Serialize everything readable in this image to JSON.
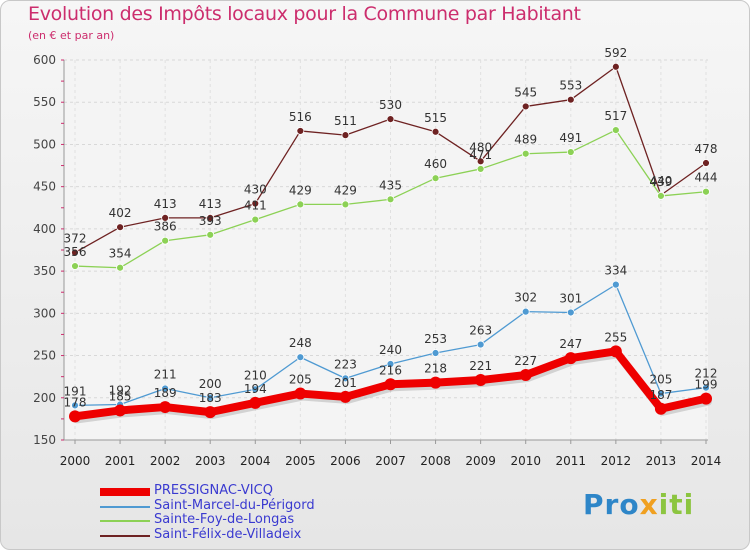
{
  "header": {
    "title": "Evolution des Impôts locaux pour la Commune par Habitant",
    "subtitle": "(en € et par an)"
  },
  "brand": {
    "part1": "Pro",
    "part2": "x",
    "part3": "iti"
  },
  "chart_data": {
    "type": "line",
    "title": "Evolution des Impôts locaux pour la Commune par Habitant",
    "subtitle": "(en € et par an)",
    "xlabel": "",
    "ylabel": "",
    "x": [
      "2000",
      "2001",
      "2002",
      "2003",
      "2004",
      "2005",
      "2006",
      "2007",
      "2008",
      "2009",
      "2010",
      "2011",
      "2012",
      "2013",
      "2014"
    ],
    "ylim": [
      150,
      600
    ],
    "yticks": [
      150,
      200,
      250,
      300,
      350,
      400,
      450,
      500,
      550,
      600
    ],
    "grid": true,
    "legend_position": "bottom-left",
    "series": [
      {
        "name": "PRESSIGNAC-VICQ",
        "color": "#ee0000",
        "width": 8,
        "values": [
          178,
          185,
          189,
          183,
          194,
          205,
          201,
          216,
          218,
          221,
          227,
          247,
          255,
          187,
          199
        ]
      },
      {
        "name": "Saint-Marcel-du-Périgord",
        "color": "#4f9ad2",
        "width": 1.3,
        "values": [
          191,
          192,
          211,
          200,
          210,
          248,
          223,
          240,
          253,
          263,
          302,
          301,
          334,
          205,
          212
        ]
      },
      {
        "name": "Sainte-Foy-de-Longas",
        "color": "#8cd155",
        "width": 1.3,
        "values": [
          356,
          354,
          386,
          393,
          411,
          429,
          429,
          435,
          460,
          471,
          489,
          491,
          517,
          439,
          444
        ]
      },
      {
        "name": "Saint-Félix-de-Villadeix",
        "color": "#6e2222",
        "width": 1.3,
        "values": [
          372,
          402,
          413,
          413,
          430,
          516,
          511,
          530,
          515,
          480,
          545,
          553,
          592,
          440,
          478
        ]
      }
    ]
  }
}
